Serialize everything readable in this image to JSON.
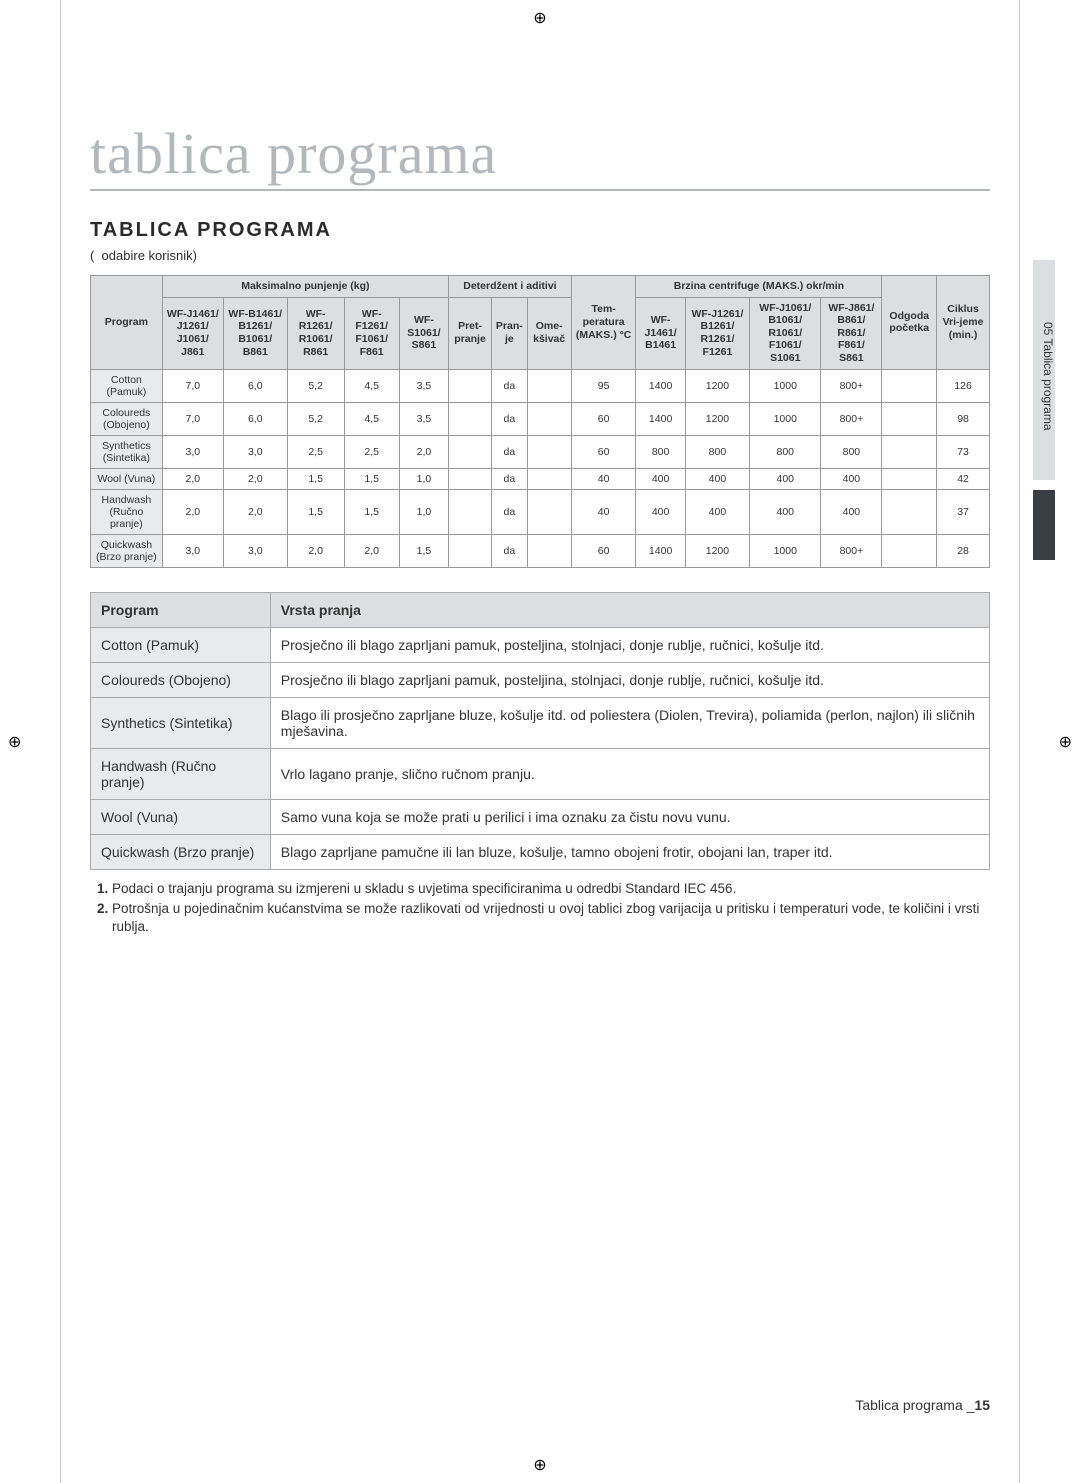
{
  "meta": {
    "page_title": "tablica programa",
    "section_heading": "TABLICA PROGRAMA",
    "sub_note": "(  odabire korisnik)",
    "side_tab": "05 Tablica programa",
    "footer_text": "Tablica programa _",
    "page_number": "15"
  },
  "table1": {
    "header_groups": {
      "program": "Program",
      "max_load": "Maksimalno punjenje (kg)",
      "det_add": "Deterdžent i aditivi",
      "temp": "Tem-peratura (MAKS.) °C",
      "spin": "Brzina centrifuge (MAKS.) okr/min",
      "delay": "Odgoda početka",
      "cycle": "Ciklus Vri-jeme (min.)"
    },
    "header_cols": {
      "load1": "WF-J1461/ J1261/ J1061/ J861",
      "load2": "WF-B1461/ B1261/ B1061/ B861",
      "load3": "WF-R1261/ R1061/ R861",
      "load4": "WF-F1261/ F1061/ F861",
      "load5": "WF-S1061/ S861",
      "det1": "Pret-pranje",
      "det2": "Pran-je",
      "det3": "Ome-kšivač",
      "spin1": "WF-J1461/ B1461",
      "spin2": "WF-J1261/ B1261/ R1261/ F1261",
      "spin3": "WF-J1061/ B1061/ R1061/ F1061/ S1061",
      "spin4": "WF-J861/ B861/ R861/ F861/ S861"
    },
    "rows": [
      {
        "program": "Cotton (Pamuk)",
        "c": [
          "7,0",
          "6,0",
          "5,2",
          "4,5",
          "3,5",
          "",
          "da",
          "",
          "95",
          "1400",
          "1200",
          "1000",
          "800+",
          "",
          "126"
        ]
      },
      {
        "program": "Coloureds (Obojeno)",
        "c": [
          "7,0",
          "6,0",
          "5,2",
          "4,5",
          "3,5",
          "",
          "da",
          "",
          "60",
          "1400",
          "1200",
          "1000",
          "800+",
          "",
          "98"
        ]
      },
      {
        "program": "Synthetics (Sintetika)",
        "c": [
          "3,0",
          "3,0",
          "2,5",
          "2,5",
          "2,0",
          "",
          "da",
          "",
          "60",
          "800",
          "800",
          "800",
          "800",
          "",
          "73"
        ]
      },
      {
        "program": "Wool (Vuna)",
        "c": [
          "2,0",
          "2,0",
          "1,5",
          "1,5",
          "1,0",
          "",
          "da",
          "",
          "40",
          "400",
          "400",
          "400",
          "400",
          "",
          "42"
        ]
      },
      {
        "program": "Handwash (Ručno pranje)",
        "c": [
          "2,0",
          "2,0",
          "1,5",
          "1,5",
          "1,0",
          "",
          "da",
          "",
          "40",
          "400",
          "400",
          "400",
          "400",
          "",
          "37"
        ]
      },
      {
        "program": "Quickwash (Brzo pranje)",
        "c": [
          "3,0",
          "3,0",
          "2,0",
          "2,0",
          "1,5",
          "",
          "da",
          "",
          "60",
          "1400",
          "1200",
          "1000",
          "800+",
          "",
          "28"
        ]
      }
    ]
  },
  "table2": {
    "head_program": "Program",
    "head_type": "Vrsta pranja",
    "rows": [
      {
        "p": "Cotton (Pamuk)",
        "d": "Prosječno ili blago zaprljani pamuk, posteljina, stolnjaci, donje rublje, ručnici, košulje itd."
      },
      {
        "p": "Coloureds (Obojeno)",
        "d": "Prosječno ili blago zaprljani pamuk, posteljina, stolnjaci, donje rublje, ručnici, košulje itd."
      },
      {
        "p": "Synthetics (Sintetika)",
        "d": "Blago ili prosječno zaprljane bluze, košulje itd. od poliestera (Diolen, Trevira), poliamida (perlon, najlon) ili sličnih mješavina."
      },
      {
        "p": "Handwash (Ručno pranje)",
        "d": "Vrlo lagano pranje, slično ručnom pranju."
      },
      {
        "p": "Wool (Vuna)",
        "d": "Samo vuna koja se može prati u perilici i ima oznaku za čistu novu vunu."
      },
      {
        "p": "Quickwash (Brzo pranje)",
        "d": "Blago zaprljane pamučne ili lan bluze, košulje, tamno obojeni frotir, obojani lan, traper itd."
      }
    ]
  },
  "notes": [
    "Podaci o trajanju programa su izmjereni u skladu s uvjetima specificiranima u odredbi Standard IEC 456.",
    "Potrošnja u pojedinačnim kućanstvima se može razlikovati od vrijednosti u ovoj tablici zbog varijacija u pritisku i temperaturi vode, te količini i vrsti rublja."
  ]
}
